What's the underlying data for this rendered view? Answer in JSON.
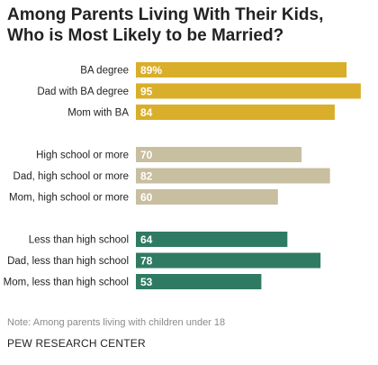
{
  "title_lines": [
    "Among Parents Living With Their Kids,",
    "Who is Most Likely to be Married?"
  ],
  "note": "Note: Among parents living with children under 18",
  "source": "PEW RESEARCH CENTER",
  "colors": {
    "group1": "#d9ae2b",
    "group2": "#c8bea0",
    "group3": "#2f7a63",
    "label_text": "#222222",
    "value_text": "#ffffff"
  },
  "chart_data": {
    "type": "bar",
    "orientation": "horizontal",
    "categories": [
      "BA degree",
      "Dad with BA degree",
      "Mom with BA",
      "High school or more",
      "Dad, high school or more",
      "Mom, high school or more",
      "Less than high school",
      "Dad, less than high school",
      "Mom, less than high school"
    ],
    "values": [
      89,
      95,
      84,
      70,
      82,
      60,
      64,
      78,
      53
    ],
    "value_labels": [
      "89%",
      "95",
      "84",
      "70",
      "82",
      "60",
      "64",
      "78",
      "53"
    ],
    "groups": [
      0,
      0,
      0,
      1,
      1,
      1,
      2,
      2,
      2
    ],
    "xlim": [
      0,
      100
    ],
    "grid": false,
    "legend": "none"
  }
}
